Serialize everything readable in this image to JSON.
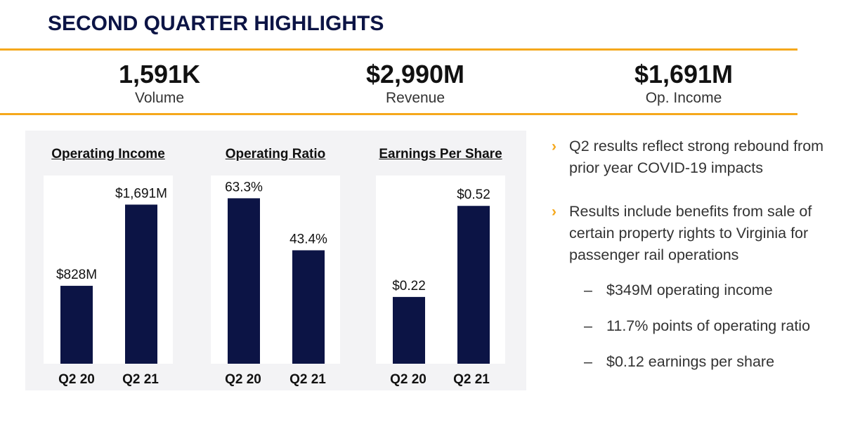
{
  "title": "SECOND QUARTER HIGHLIGHTS",
  "kpis": [
    {
      "value": "1,591K",
      "label": "Volume"
    },
    {
      "value": "$2,990M",
      "label": "Revenue"
    },
    {
      "value": "$1,691M",
      "label": "Op. Income"
    }
  ],
  "colors": {
    "bar": "#0c1445",
    "accent": "#f5a81c",
    "panel": "#f3f3f5"
  },
  "chart_data": [
    {
      "type": "bar",
      "title": "Operating Income",
      "categories": [
        "Q2 20",
        "Q2 21"
      ],
      "values": [
        828,
        1691
      ],
      "labels": [
        "$828M",
        "$1,691M"
      ],
      "ylim": [
        0,
        2000
      ]
    },
    {
      "type": "bar",
      "title": "Operating Ratio",
      "categories": [
        "Q2 20",
        "Q2 21"
      ],
      "values": [
        63.3,
        43.4
      ],
      "labels": [
        "63.3%",
        "43.4%"
      ],
      "ylim": [
        0,
        72
      ]
    },
    {
      "type": "bar",
      "title": "Earnings Per Share",
      "categories": [
        "Q2 20",
        "Q2 21"
      ],
      "values": [
        0.22,
        0.52
      ],
      "labels": [
        "$0.22",
        "$0.52"
      ],
      "ylim": [
        0,
        0.62
      ]
    }
  ],
  "bullets": [
    {
      "text": "Q2 results reflect strong rebound from prior year COVID-19 impacts"
    },
    {
      "text": "Results include benefits from sale of certain property rights to Virginia for passenger rail operations"
    }
  ],
  "sub_bullets": [
    {
      "text": "$349M operating income"
    },
    {
      "text": "11.7% points of operating ratio"
    },
    {
      "text": "$0.12 earnings per share"
    }
  ],
  "icons": {
    "bullet": "chevron-right-icon",
    "dash": "en-dash"
  }
}
